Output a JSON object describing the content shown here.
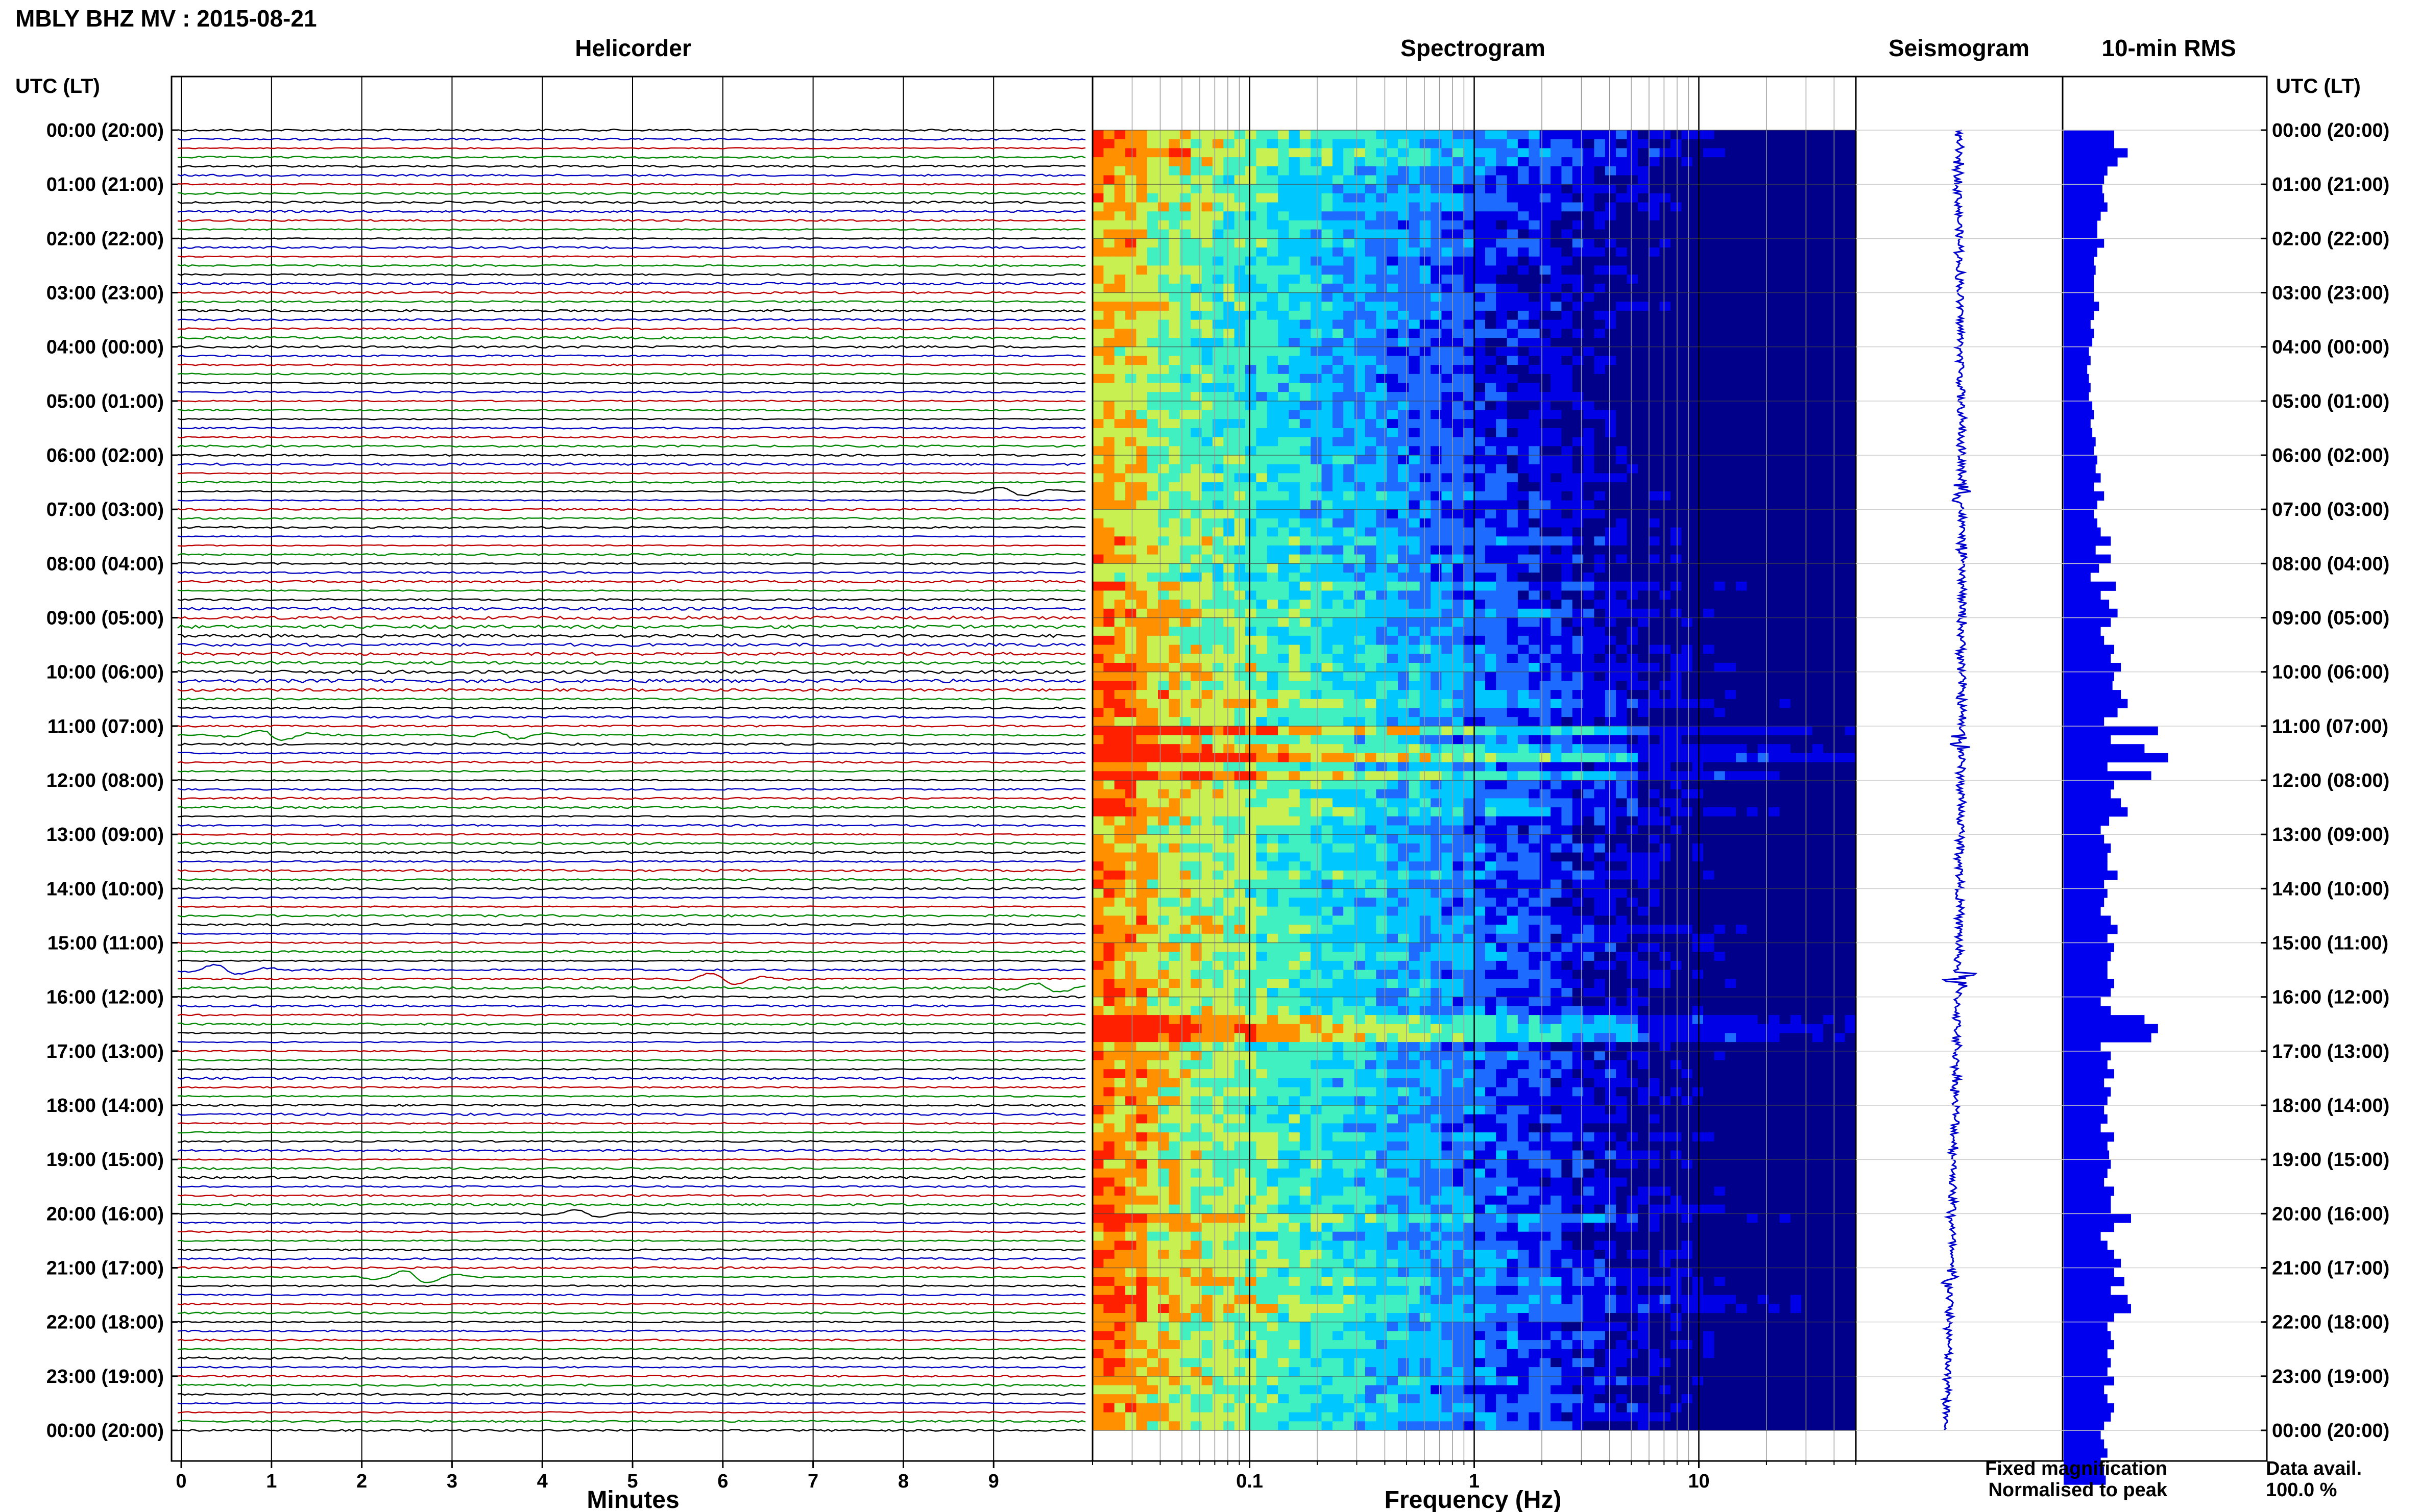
{
  "chart_data": {
    "type": "composite",
    "title": "MBLY BHZ MV : 2015-08-21",
    "left_axis_title": "UTC (LT)",
    "right_axis_title": "UTC (LT)",
    "time_labels": [
      "00:00 (20:00)",
      "01:00 (21:00)",
      "02:00 (22:00)",
      "03:00 (23:00)",
      "04:00 (00:00)",
      "05:00 (01:00)",
      "06:00 (02:00)",
      "07:00 (03:00)",
      "08:00 (04:00)",
      "09:00 (05:00)",
      "10:00 (06:00)",
      "11:00 (07:00)",
      "12:00 (08:00)",
      "13:00 (09:00)",
      "14:00 (10:00)",
      "15:00 (11:00)",
      "16:00 (12:00)",
      "17:00 (13:00)",
      "18:00 (14:00)",
      "19:00 (15:00)",
      "20:00 (16:00)",
      "21:00 (17:00)",
      "22:00 (18:00)",
      "23:00 (19:00)",
      "00:00 (20:00)"
    ],
    "helicorder": {
      "title": "Helicorder",
      "xlabel": "Minutes",
      "xticks": [
        "0",
        "1",
        "2",
        "3",
        "4",
        "5",
        "6",
        "7",
        "8",
        "9"
      ],
      "xlim": [
        0,
        10
      ],
      "trace_colors": [
        "#000000",
        "#0000c0",
        "#c00000",
        "#008800"
      ],
      "lines_per_hour": 6,
      "events": [
        {
          "hour": 11.1,
          "minute": 1.0,
          "strength": 2.2
        },
        {
          "hour": 11.2,
          "minute": 3.6,
          "strength": 1.6
        },
        {
          "hour": 15.5,
          "minute": 0.5,
          "strength": 2.0
        },
        {
          "hour": 15.7,
          "minute": 6.0,
          "strength": 2.4
        },
        {
          "hour": 15.8,
          "minute": 9.6,
          "strength": 1.8
        },
        {
          "hour": 21.1,
          "minute": 2.6,
          "strength": 2.6
        },
        {
          "hour": 6.6,
          "minute": 9.2,
          "strength": 1.8
        },
        {
          "hour": 20.0,
          "minute": 4.5,
          "strength": 1.5
        }
      ]
    },
    "spectrogram": {
      "title": "Spectrogram",
      "xlabel": "Frequency (Hz)",
      "xscale": "log",
      "xlim": [
        0.02,
        50
      ],
      "xticks": [
        "0.1",
        "1",
        "10"
      ],
      "colormap": [
        "#00008b",
        "#0000e6",
        "#1e6cff",
        "#00c8ff",
        "#40f0c0",
        "#c8f050",
        "#ff9000",
        "#ff2000"
      ]
    },
    "seismogram": {
      "title": "Seismogram",
      "color": "#0000cc",
      "bursts": [
        {
          "hour": 6.7,
          "amp": 2.5
        },
        {
          "hour": 11.3,
          "amp": 3.5
        },
        {
          "hour": 15.7,
          "amp": 4.0
        },
        {
          "hour": 21.2,
          "amp": 2.2
        },
        {
          "hour": 20.0,
          "amp": 1.4
        }
      ]
    },
    "rms": {
      "title": "10-min RMS",
      "color": "#0000ee",
      "xmax": 1.0,
      "values": [
        0.3,
        0.3,
        0.38,
        0.32,
        0.26,
        0.24,
        0.23,
        0.24,
        0.26,
        0.22,
        0.2,
        0.2,
        0.24,
        0.2,
        0.18,
        0.19,
        0.18,
        0.18,
        0.18,
        0.21,
        0.18,
        0.16,
        0.18,
        0.17,
        0.15,
        0.16,
        0.14,
        0.15,
        0.16,
        0.15,
        0.17,
        0.18,
        0.16,
        0.17,
        0.19,
        0.18,
        0.2,
        0.19,
        0.22,
        0.18,
        0.24,
        0.2,
        0.18,
        0.2,
        0.22,
        0.28,
        0.19,
        0.28,
        0.21,
        0.16,
        0.31,
        0.22,
        0.27,
        0.32,
        0.28,
        0.22,
        0.24,
        0.3,
        0.28,
        0.34,
        0.3,
        0.29,
        0.34,
        0.38,
        0.32,
        0.24,
        0.56,
        0.28,
        0.48,
        0.62,
        0.26,
        0.52,
        0.3,
        0.28,
        0.34,
        0.38,
        0.27,
        0.22,
        0.24,
        0.28,
        0.26,
        0.26,
        0.32,
        0.24,
        0.26,
        0.24,
        0.22,
        0.28,
        0.32,
        0.26,
        0.3,
        0.28,
        0.26,
        0.26,
        0.3,
        0.28,
        0.22,
        0.28,
        0.48,
        0.56,
        0.52,
        0.22,
        0.28,
        0.26,
        0.3,
        0.24,
        0.28,
        0.26,
        0.24,
        0.26,
        0.22,
        0.3,
        0.26,
        0.27,
        0.28,
        0.26,
        0.24,
        0.3,
        0.28,
        0.28,
        0.4,
        0.3,
        0.22,
        0.26,
        0.3,
        0.34,
        0.3,
        0.36,
        0.28,
        0.38,
        0.4,
        0.3,
        0.26,
        0.28,
        0.3,
        0.26,
        0.28,
        0.26,
        0.3,
        0.24,
        0.26,
        0.3,
        0.28,
        0.24,
        0.22,
        0.24,
        0.26,
        0.22,
        0.24,
        0.25
      ]
    },
    "legend": {
      "fixed": "Fixed magnification",
      "fixed_color": "#0000ff",
      "normalised": "Normalised to peak",
      "normalised_color": "#ff0000",
      "avail_label": "Data avail.",
      "avail_value": "100.0 %"
    }
  }
}
